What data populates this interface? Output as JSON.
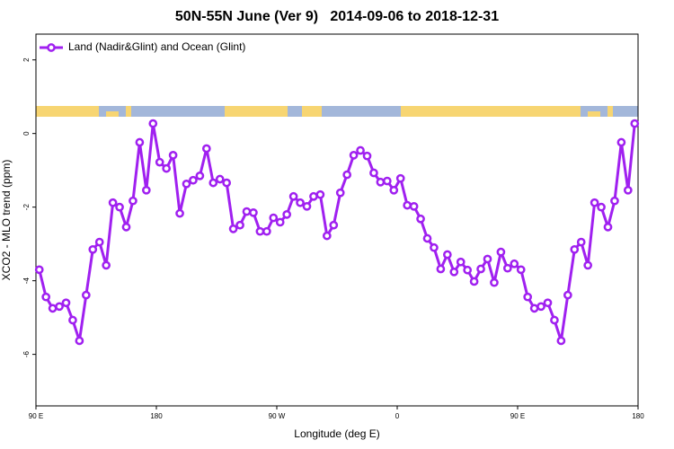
{
  "chart_data": {
    "type": "line",
    "title": "50N-55N June (Ver 9)   2014-09-06 to 2018-12-31",
    "x_label": "Longitude (deg E)",
    "y_label": "XCO2 - MLO trend (ppm)",
    "x": [
      92.5,
      97.5,
      102.5,
      107.5,
      112.5,
      117.5,
      122.5,
      127.5,
      132.5,
      137.5,
      142.5,
      147.5,
      152.5,
      157.5,
      162.5,
      167.5,
      172.5,
      177.5,
      182.5,
      187.5,
      192.5,
      197.5,
      202.5,
      207.5,
      212.5,
      217.5,
      222.5,
      227.5,
      232.5,
      237.5,
      242.5,
      247.5,
      252.5,
      257.5,
      262.5,
      267.5,
      272.5,
      277.5,
      282.5,
      287.5,
      292.5,
      297.5,
      302.5,
      307.5,
      312.5,
      317.5,
      322.5,
      327.5,
      332.5,
      337.5,
      342.5,
      347.5,
      352.5,
      357.5,
      362.5,
      367.5,
      372.5,
      377.5,
      382.5,
      387.5,
      392.5,
      397.5,
      402.5,
      407.5,
      412.5,
      417.5,
      422.5,
      427.5,
      432.5,
      437.5,
      442.5,
      447.5,
      452.5,
      457.5,
      462.5,
      467.5,
      472.5,
      477.5,
      482.5,
      487.5,
      492.5,
      497.5,
      502.5,
      507.5,
      512.5,
      517.5,
      522.5,
      527.5,
      532.5,
      537.5
    ],
    "series": [
      {
        "name": "Land (Nadir&Glint) and Ocean (Glint)",
        "color": "#a020f0",
        "values": [
          -3.7,
          -4.44,
          -4.75,
          -4.7,
          -4.6,
          -5.07,
          -5.63,
          -4.39,
          -3.15,
          -2.95,
          -3.58,
          -1.88,
          -2.0,
          -2.54,
          -1.83,
          -0.24,
          -1.54,
          0.27,
          -0.78,
          -0.95,
          -0.59,
          -2.17,
          -1.37,
          -1.27,
          -1.15,
          -0.41,
          -1.34,
          -1.24,
          -1.34,
          -2.59,
          -2.49,
          -2.12,
          -2.15,
          -2.66,
          -2.66,
          -2.29,
          -2.41,
          -2.2,
          -1.71,
          -1.88,
          -1.98,
          -1.71,
          -1.66,
          -2.78,
          -2.49,
          -1.61,
          -1.12,
          -0.59,
          -0.46,
          -0.61,
          -1.07,
          -1.32,
          -1.29,
          -1.54,
          -1.22,
          -1.95,
          -1.98,
          -2.32,
          -2.85,
          -3.1,
          -3.68,
          -3.29,
          -3.76,
          -3.49,
          -3.71,
          -4.02,
          -3.68,
          -3.41,
          -4.05,
          -3.22,
          -3.66,
          -3.54,
          -3.7,
          -4.44,
          -4.75,
          -4.7,
          -4.6,
          -5.07,
          -5.63,
          -4.39,
          -3.15,
          -2.95,
          -3.58,
          -1.88,
          -2.0,
          -2.54,
          -1.83,
          -0.24,
          -1.54,
          0.27
        ]
      }
    ],
    "xlim": [
      90,
      540
    ],
    "xticks": [
      {
        "value": 90,
        "label": "90 E"
      },
      180,
      {
        "value": 270,
        "label": "90 W"
      },
      {
        "value": 360,
        "label": "0"
      },
      {
        "value": 450,
        "label": "90 E"
      },
      {
        "value": 540,
        "label": "180"
      }
    ],
    "ylim": [
      -7.4,
      2.7
    ],
    "yticks": [
      -6,
      -4,
      -2,
      0,
      2
    ],
    "legend": "top-left"
  }
}
